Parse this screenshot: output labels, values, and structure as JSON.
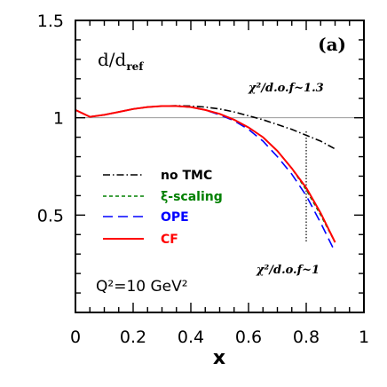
{
  "chart_data": {
    "type": "line",
    "panel_label": "(a)",
    "ylabel_main": "d/d",
    "ylabel_sub": "ref",
    "xlabel": "x",
    "annotation_q2": "Q²=10 GeV²",
    "annotation_chi_top": "χ²/d.o.f~1.3",
    "annotation_chi_bottom": "χ²/d.o.f~1",
    "xlim": [
      0,
      1
    ],
    "ylim": [
      0,
      1.5
    ],
    "x_ticks": [
      "0",
      "0.2",
      "0.4",
      "0.6",
      "0.8",
      "1"
    ],
    "y_ticks": [
      "0.5",
      "1",
      "1.5"
    ],
    "reference_line": 1.0,
    "cut_marker_x": 0.8,
    "cut_marker_range": [
      0.36,
      0.93
    ],
    "legend": {
      "placement": "left",
      "entries": [
        "no TMC",
        "ξ-scaling",
        "OPE",
        "CF"
      ]
    },
    "series": [
      {
        "name": "no TMC",
        "color": "#000000",
        "dash": "dashdot",
        "points": [
          [
            0,
            1.04
          ],
          [
            0.05,
            1.005
          ],
          [
            0.1,
            1.015
          ],
          [
            0.15,
            1.03
          ],
          [
            0.2,
            1.045
          ],
          [
            0.25,
            1.055
          ],
          [
            0.3,
            1.06
          ],
          [
            0.35,
            1.062
          ],
          [
            0.4,
            1.06
          ],
          [
            0.45,
            1.055
          ],
          [
            0.5,
            1.045
          ],
          [
            0.55,
            1.03
          ],
          [
            0.6,
            1.01
          ],
          [
            0.65,
            0.99
          ],
          [
            0.7,
            0.965
          ],
          [
            0.75,
            0.94
          ],
          [
            0.8,
            0.91
          ],
          [
            0.85,
            0.88
          ],
          [
            0.9,
            0.84
          ]
        ]
      },
      {
        "name": "ξ-scaling",
        "color": "#008000",
        "dash": "dashed",
        "points": [
          [
            0,
            1.04
          ],
          [
            0.05,
            1.005
          ],
          [
            0.1,
            1.015
          ],
          [
            0.15,
            1.03
          ],
          [
            0.2,
            1.045
          ],
          [
            0.25,
            1.055
          ],
          [
            0.3,
            1.06
          ],
          [
            0.35,
            1.06
          ],
          [
            0.4,
            1.055
          ],
          [
            0.45,
            1.04
          ],
          [
            0.5,
            1.02
          ],
          [
            0.55,
            0.99
          ],
          [
            0.6,
            0.95
          ],
          [
            0.65,
            0.9
          ],
          [
            0.7,
            0.83
          ],
          [
            0.75,
            0.74
          ],
          [
            0.8,
            0.63
          ],
          [
            0.85,
            0.5
          ],
          [
            0.9,
            0.36
          ]
        ]
      },
      {
        "name": "OPE",
        "color": "#0000ff",
        "dash": "longdash",
        "points": [
          [
            0,
            1.04
          ],
          [
            0.05,
            1.005
          ],
          [
            0.1,
            1.015
          ],
          [
            0.15,
            1.03
          ],
          [
            0.2,
            1.045
          ],
          [
            0.25,
            1.055
          ],
          [
            0.3,
            1.06
          ],
          [
            0.35,
            1.06
          ],
          [
            0.4,
            1.055
          ],
          [
            0.45,
            1.04
          ],
          [
            0.5,
            1.015
          ],
          [
            0.55,
            0.985
          ],
          [
            0.6,
            0.94
          ],
          [
            0.65,
            0.88
          ],
          [
            0.7,
            0.8
          ],
          [
            0.75,
            0.71
          ],
          [
            0.8,
            0.6
          ],
          [
            0.85,
            0.46
          ],
          [
            0.9,
            0.31
          ]
        ]
      },
      {
        "name": "CF",
        "color": "#ff0000",
        "dash": "solid",
        "points": [
          [
            0,
            1.04
          ],
          [
            0.05,
            1.005
          ],
          [
            0.1,
            1.015
          ],
          [
            0.15,
            1.03
          ],
          [
            0.2,
            1.045
          ],
          [
            0.25,
            1.055
          ],
          [
            0.3,
            1.06
          ],
          [
            0.35,
            1.06
          ],
          [
            0.4,
            1.055
          ],
          [
            0.45,
            1.04
          ],
          [
            0.5,
            1.02
          ],
          [
            0.55,
            0.99
          ],
          [
            0.6,
            0.95
          ],
          [
            0.65,
            0.9
          ],
          [
            0.7,
            0.83
          ],
          [
            0.75,
            0.74
          ],
          [
            0.8,
            0.64
          ],
          [
            0.85,
            0.51
          ],
          [
            0.9,
            0.36
          ]
        ]
      }
    ]
  }
}
